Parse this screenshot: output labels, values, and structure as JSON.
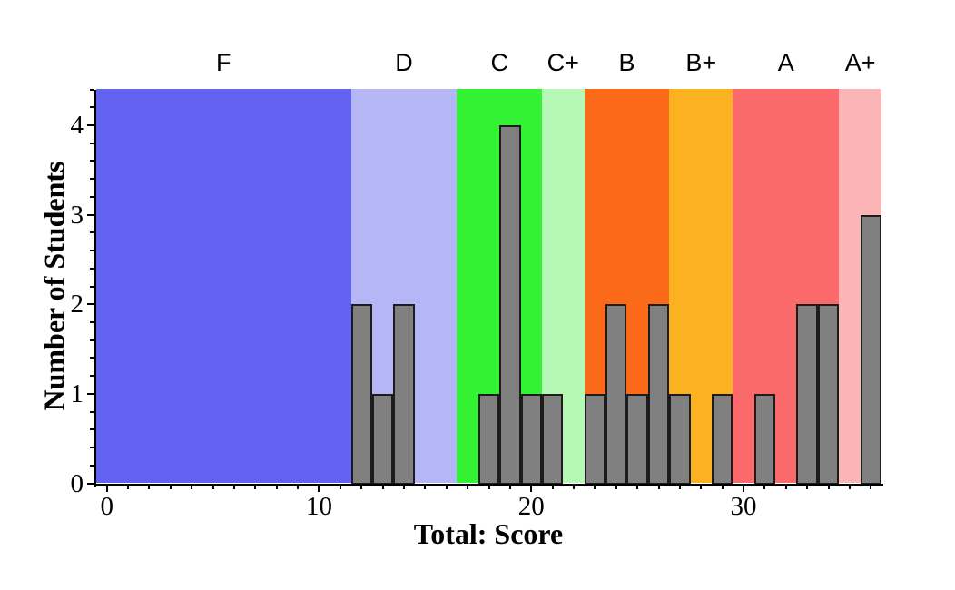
{
  "chart_data": {
    "type": "bar",
    "subtype": "histogram",
    "title": "",
    "xlabel": "Total: Score",
    "ylabel": "Number of Students",
    "xlim": [
      -0.5,
      36.5
    ],
    "ylim": [
      0,
      4.4
    ],
    "grid": false,
    "legend": "none",
    "x_major_ticks": [
      {
        "value": 0,
        "label": "0"
      },
      {
        "value": 10,
        "label": "10"
      },
      {
        "value": 20,
        "label": "20"
      },
      {
        "value": 30,
        "label": "30"
      }
    ],
    "x_minor_tick_step": 1,
    "y_major_ticks": [
      {
        "value": 0,
        "label": "0"
      },
      {
        "value": 1,
        "label": "1"
      },
      {
        "value": 2,
        "label": "2"
      },
      {
        "value": 3,
        "label": "3"
      },
      {
        "value": 4,
        "label": "4"
      }
    ],
    "y_minor_tick_step": 0.2,
    "bin_width": 1,
    "bars": [
      {
        "score": 12,
        "students": 2
      },
      {
        "score": 13,
        "students": 1
      },
      {
        "score": 14,
        "students": 2
      },
      {
        "score": 18,
        "students": 1
      },
      {
        "score": 19,
        "students": 4
      },
      {
        "score": 20,
        "students": 1
      },
      {
        "score": 21,
        "students": 1
      },
      {
        "score": 23,
        "students": 1
      },
      {
        "score": 24,
        "students": 2
      },
      {
        "score": 25,
        "students": 1
      },
      {
        "score": 26,
        "students": 2
      },
      {
        "score": 27,
        "students": 1
      },
      {
        "score": 29,
        "students": 1
      },
      {
        "score": 31,
        "students": 1
      },
      {
        "score": 33,
        "students": 2
      },
      {
        "score": 34,
        "students": 2
      },
      {
        "score": 36,
        "students": 3
      }
    ],
    "grade_bands": [
      {
        "label": "F",
        "from": -0.5,
        "to": 11.5,
        "color": "#6363F2"
      },
      {
        "label": "D",
        "from": 11.5,
        "to": 16.5,
        "color": "#B5B6F5"
      },
      {
        "label": "C",
        "from": 16.5,
        "to": 20.5,
        "color": "#33F233"
      },
      {
        "label": "C+",
        "from": 20.5,
        "to": 22.5,
        "color": "#B6F9B6"
      },
      {
        "label": "B",
        "from": 22.5,
        "to": 26.5,
        "color": "#FB6A18"
      },
      {
        "label": "B+",
        "from": 26.5,
        "to": 29.5,
        "color": "#FBB120"
      },
      {
        "label": "A",
        "from": 29.5,
        "to": 34.5,
        "color": "#FA6A6A"
      },
      {
        "label": "A+",
        "from": 34.5,
        "to": 36.5,
        "color": "#FBB5B7"
      }
    ],
    "styles": {
      "bar_fill": "#808080",
      "bar_edge": "#1C1C1C",
      "axis_color": "#000000",
      "background": "#FFFFFF"
    }
  }
}
